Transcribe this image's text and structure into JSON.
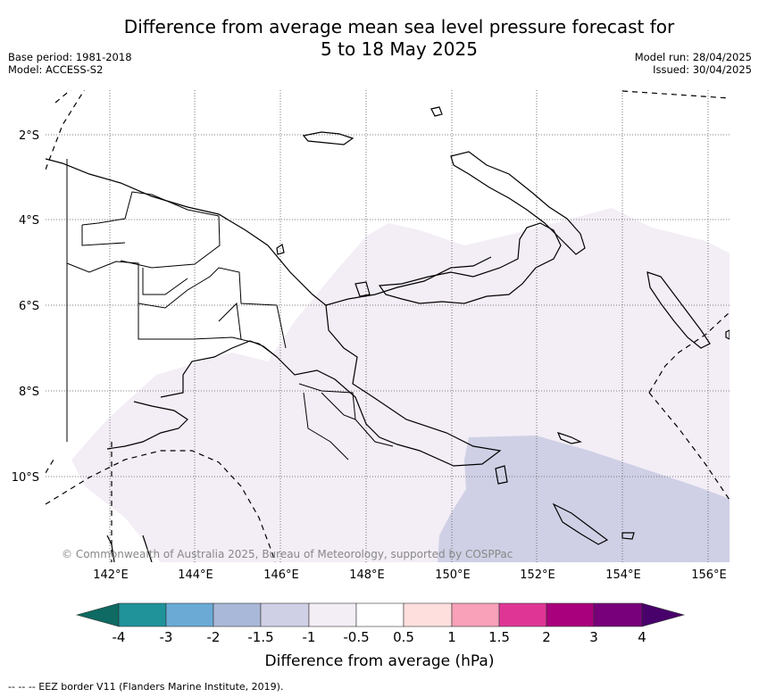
{
  "header": {
    "title_line1": "Difference from average mean sea level pressure forecast for",
    "title_line2": "5 to 18 May 2025",
    "base_period": "Base period: 1981-2018",
    "model": "Model: ACCESS-S2",
    "model_run": "Model run: 28/04/2025",
    "issued": "Issued: 30/04/2025"
  },
  "map": {
    "longitude_labels": [
      "142°E",
      "144°E",
      "146°E",
      "148°E",
      "150°E",
      "152°E",
      "154°E",
      "156°E"
    ],
    "latitude_labels": [
      "2°S",
      "4°S",
      "6°S",
      "8°S",
      "10°S"
    ],
    "copyright": "© Commonwealth of Australia 2025, Bureau of Meteorology, supported by COSPPac",
    "shading_legend": [
      {
        "range": "-1 to -0.5",
        "color": "#f3edf6"
      },
      {
        "range": "-1.5 to -1",
        "color": "#cfd0e5"
      }
    ]
  },
  "colorbar": {
    "title": "Difference from average (hPa)",
    "tick_labels": [
      "-4",
      "-3",
      "-2",
      "-1.5",
      "-1",
      "-0.5",
      "0.5",
      "1",
      "1.5",
      "2",
      "3",
      "4"
    ],
    "colors": {
      "lt_-4": "#0e6a62",
      "-4_-3": "#1f929a",
      "-3_-2": "#6aaad5",
      "-2_-1.5": "#a9b8d8",
      "-1.5_-1": "#cfd0e5",
      "-1_-0.5": "#f3edf6",
      "-0.5_0.5": "#ffffff",
      "0.5_1": "#ffdfdd",
      "1_1.5": "#f8a1b9",
      "1.5_2": "#df3696",
      "2_3": "#a9007d",
      "3_4": "#78007a",
      "gt_4": "#48006a"
    }
  },
  "footnote": "--  --  -- EEZ border V11 (Flanders Marine Institute, 2019)."
}
